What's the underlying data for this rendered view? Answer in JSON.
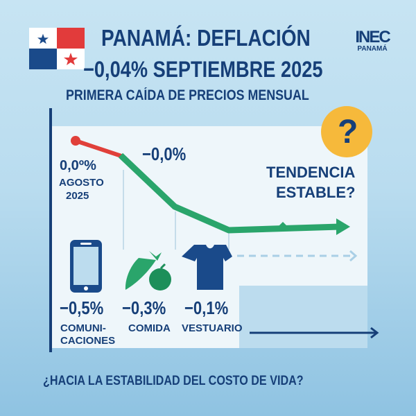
{
  "header": {
    "title": "PANAMÁ: DEFLACIÓN",
    "subtitle": "−0,04% SEPTIEMBRE 2025",
    "tagline": "PRIMERA CAÍDA DE PRECIOS MENSUAL"
  },
  "logo": {
    "text": "INEC",
    "sub": "PANAMÁ"
  },
  "flag": {
    "colors": {
      "white": "#ffffff",
      "red": "#e23b3b",
      "blue": "#1a4a8a"
    }
  },
  "trend": {
    "start_value": "0,0º%",
    "start_label_1": "AGOSTO",
    "start_label_2": "2025",
    "mid_value": "−0,0%",
    "question": "TENDENCIA",
    "question_2": "ESTABLE?",
    "question_mark": "?"
  },
  "categories": [
    {
      "value": "−0,5%",
      "label_1": "COMUNI-",
      "label_2": "CACIONES",
      "icon": "smartphone-icon"
    },
    {
      "value": "−0,3%",
      "label_1": "COMIDA",
      "icon": "food-icon"
    },
    {
      "value": "−0,1%",
      "label_1": "VESTUARIO",
      "icon": "tshirt-icon"
    }
  ],
  "footer": {
    "question": "¿HACIA LA ESTABILIDAD DEL COSTO DE VIDA?"
  },
  "colors": {
    "navy": "#163f78",
    "green": "#2aa56b",
    "red": "#e0403a",
    "yellow": "#f6b93b"
  }
}
